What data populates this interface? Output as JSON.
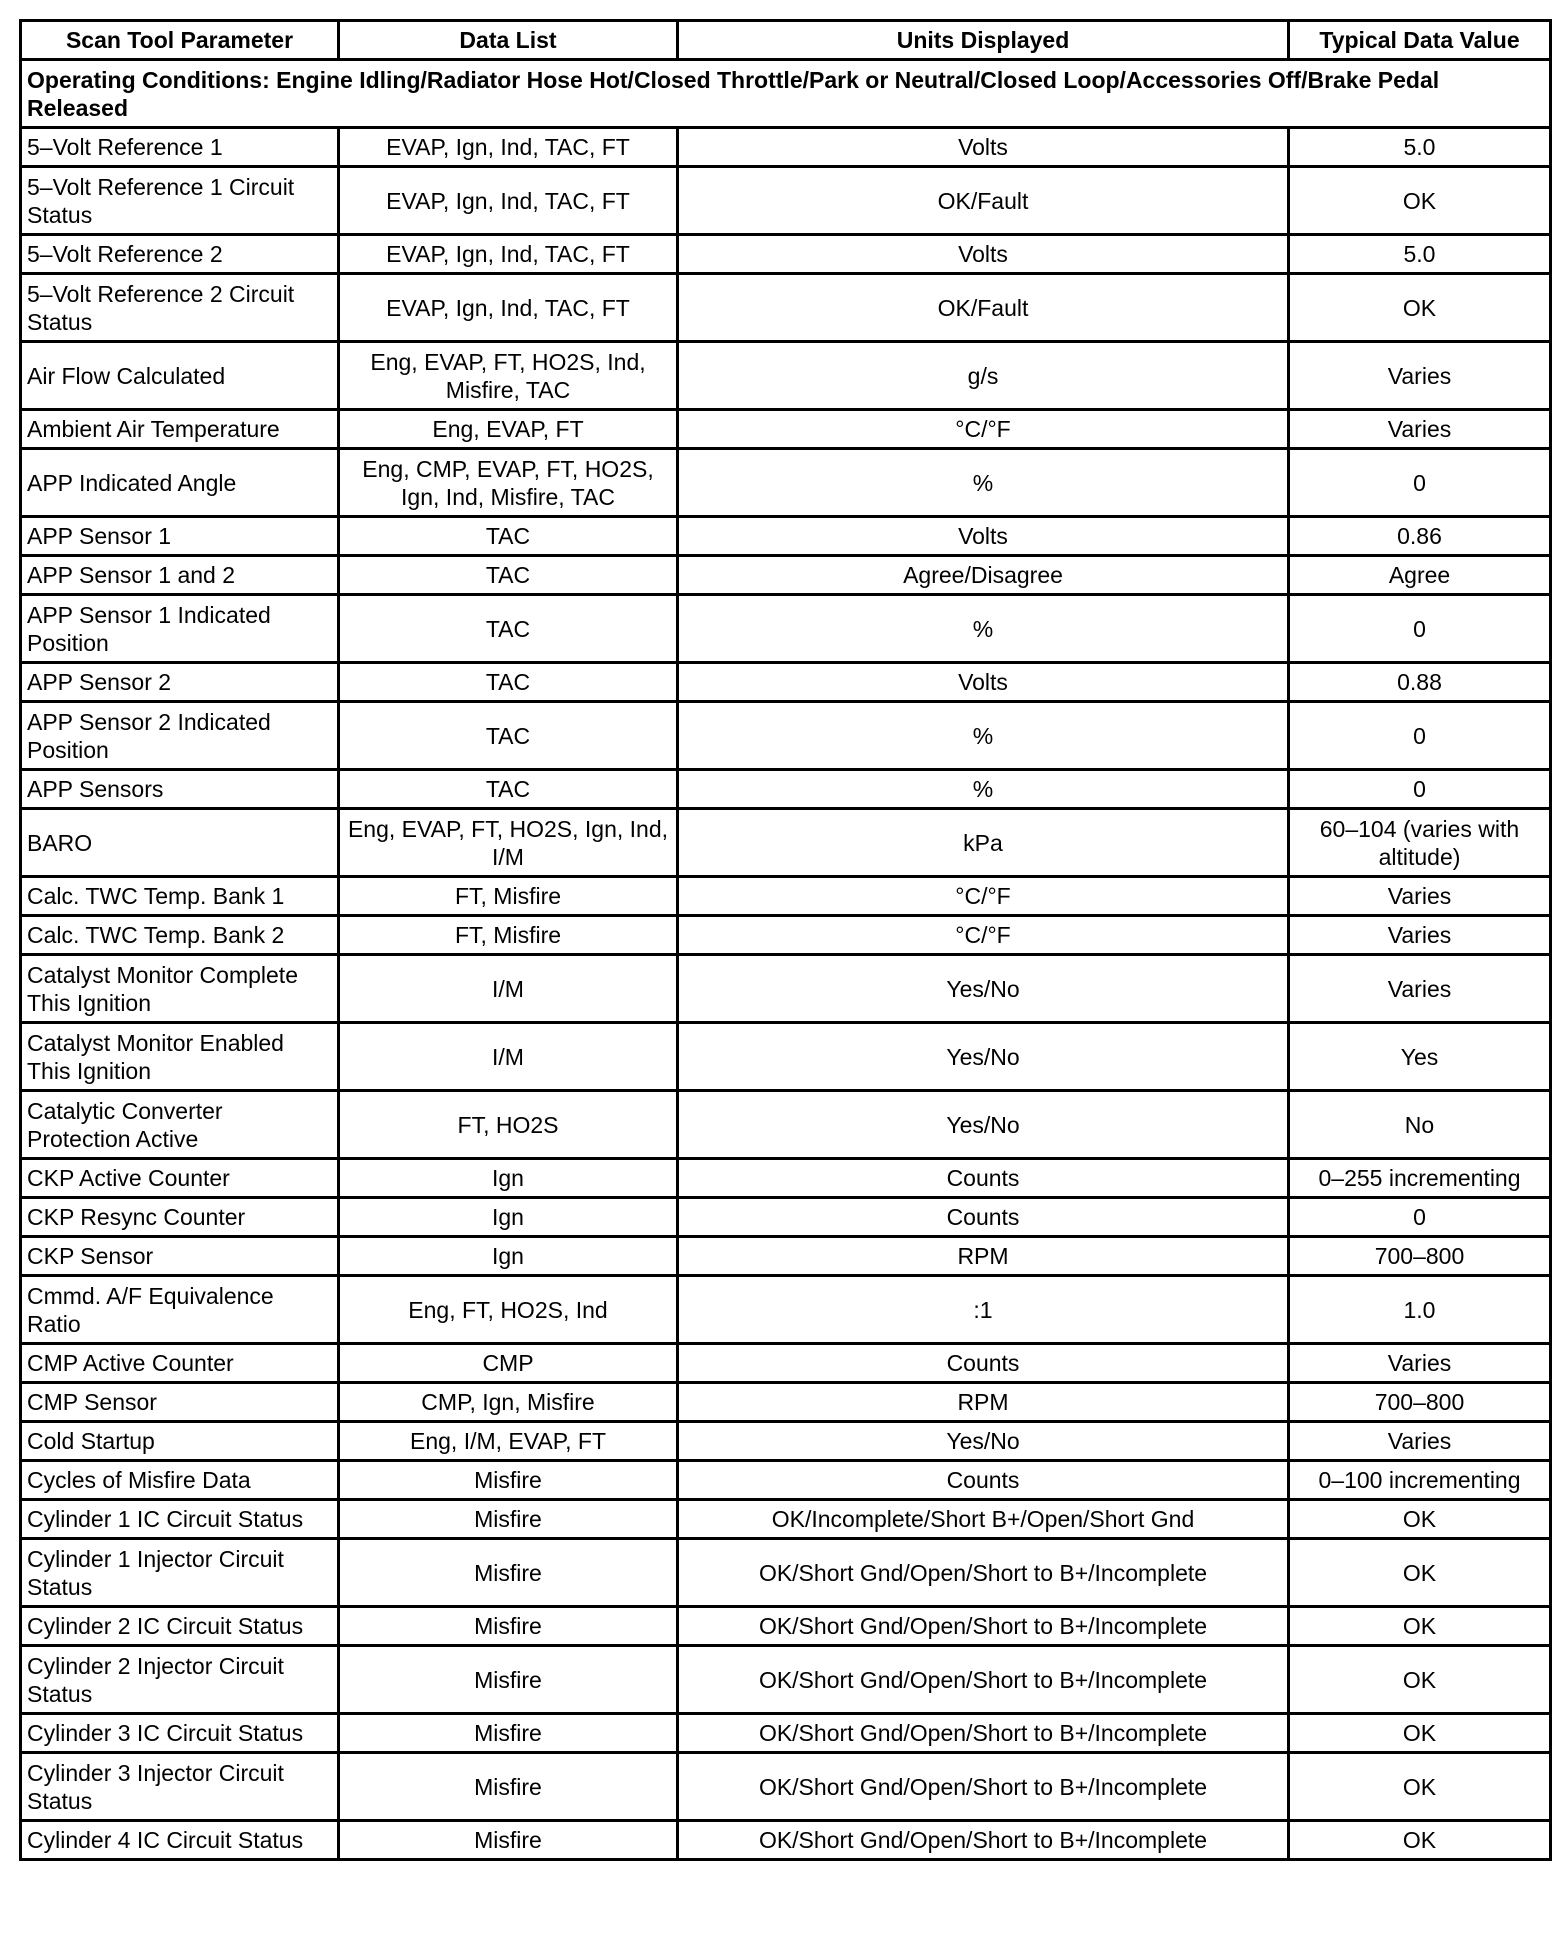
{
  "headers": [
    "Scan Tool Parameter",
    "Data List",
    "Units Displayed",
    "Typical Data Value"
  ],
  "operating_conditions": "Operating Conditions: Engine Idling/Radiator Hose Hot/Closed Throttle/Park or Neutral/Closed Loop/Accessories Off/Brake Pedal Released",
  "rows": [
    {
      "param": "5–Volt Reference 1",
      "list": "EVAP, Ign, Ind, TAC, FT",
      "units": "Volts",
      "value": "5.0",
      "h": "s"
    },
    {
      "param": "5–Volt Reference 1 Circuit Status",
      "list": "EVAP, Ign, Ind, TAC, FT",
      "units": "OK/Fault",
      "value": "OK",
      "h": "d"
    },
    {
      "param": "5–Volt Reference 2",
      "list": "EVAP, Ign, Ind, TAC, FT",
      "units": "Volts",
      "value": "5.0",
      "h": "s"
    },
    {
      "param": "5–Volt Reference 2 Circuit Status",
      "list": "EVAP, Ign, Ind, TAC, FT",
      "units": "OK/Fault",
      "value": "OK",
      "h": "d"
    },
    {
      "param": "Air Flow Calculated",
      "list": "Eng, EVAP, FT, HO2S, Ind, Misfire, TAC",
      "units": "g/s",
      "value": "Varies",
      "h": "d"
    },
    {
      "param": "Ambient Air Temperature",
      "list": "Eng, EVAP, FT",
      "units": "°C/°F",
      "value": "Varies",
      "h": "s"
    },
    {
      "param": "APP Indicated Angle",
      "list": "Eng, CMP, EVAP, FT, HO2S, Ign, Ind, Misfire, TAC",
      "units": "%",
      "value": "0",
      "h": "d"
    },
    {
      "param": "APP Sensor 1",
      "list": "TAC",
      "units": "Volts",
      "value": "0.86",
      "h": "s"
    },
    {
      "param": "APP Sensor 1 and 2",
      "list": "TAC",
      "units": "Agree/Disagree",
      "value": "Agree",
      "h": "s"
    },
    {
      "param": "APP Sensor 1 Indicated Position",
      "list": "TAC",
      "units": "%",
      "value": "0",
      "h": "d"
    },
    {
      "param": "APP Sensor 2",
      "list": "TAC",
      "units": "Volts",
      "value": "0.88",
      "h": "s"
    },
    {
      "param": "APP Sensor 2 Indicated Position",
      "list": "TAC",
      "units": "%",
      "value": "0",
      "h": "d"
    },
    {
      "param": "APP Sensors",
      "list": "TAC",
      "units": "%",
      "value": "0",
      "h": "s"
    },
    {
      "param": "BARO",
      "list": "Eng, EVAP, FT, HO2S, Ign, Ind, I/M",
      "units": "kPa",
      "value": "60–104 (varies with altitude)",
      "h": "d"
    },
    {
      "param": "Calc. TWC Temp. Bank 1",
      "list": "FT, Misfire",
      "units": "°C/°F",
      "value": "Varies",
      "h": "s"
    },
    {
      "param": "Calc. TWC Temp. Bank 2",
      "list": "FT, Misfire",
      "units": "°C/°F",
      "value": "Varies",
      "h": "s"
    },
    {
      "param": "Catalyst Monitor Complete This Ignition",
      "list": "I/M",
      "units": "Yes/No",
      "value": "Varies",
      "h": "d"
    },
    {
      "param": "Catalyst Monitor Enabled This Ignition",
      "list": "I/M",
      "units": "Yes/No",
      "value": "Yes",
      "h": "d"
    },
    {
      "param": "Catalytic Converter Protection Active",
      "list": "FT, HO2S",
      "units": "Yes/No",
      "value": "No",
      "h": "d"
    },
    {
      "param": "CKP Active Counter",
      "list": "Ign",
      "units": "Counts",
      "value": "0–255 incrementing",
      "h": "s"
    },
    {
      "param": "CKP Resync Counter",
      "list": "Ign",
      "units": "Counts",
      "value": "0",
      "h": "s"
    },
    {
      "param": "CKP Sensor",
      "list": "Ign",
      "units": "RPM",
      "value": "700–800",
      "h": "s"
    },
    {
      "param": "Cmmd. A/F Equivalence Ratio",
      "list": "Eng, FT, HO2S, Ind",
      "units": ":1",
      "value": "1.0",
      "h": "d"
    },
    {
      "param": "CMP Active Counter",
      "list": "CMP",
      "units": "Counts",
      "value": "Varies",
      "h": "s"
    },
    {
      "param": "CMP Sensor",
      "list": "CMP, Ign, Misfire",
      "units": "RPM",
      "value": "700–800",
      "h": "s"
    },
    {
      "param": "Cold Startup",
      "list": "Eng, I/M, EVAP, FT",
      "units": "Yes/No",
      "value": "Varies",
      "h": "s"
    },
    {
      "param": "Cycles of Misfire Data",
      "list": "Misfire",
      "units": "Counts",
      "value": "0–100 incrementing",
      "h": "s"
    },
    {
      "param": "Cylinder 1 IC Circuit Status",
      "list": "Misfire",
      "units": "OK/Incomplete/Short B+/Open/Short Gnd",
      "value": "OK",
      "h": "s"
    },
    {
      "param": "Cylinder 1 Injector Circuit Status",
      "list": "Misfire",
      "units": "OK/Short Gnd/Open/Short to B+/Incomplete",
      "value": "OK",
      "h": "d"
    },
    {
      "param": "Cylinder 2 IC Circuit Status",
      "list": "Misfire",
      "units": "OK/Short Gnd/Open/Short to B+/Incomplete",
      "value": "OK",
      "h": "s"
    },
    {
      "param": "Cylinder 2 Injector Circuit Status",
      "list": "Misfire",
      "units": "OK/Short Gnd/Open/Short to B+/Incomplete",
      "value": "OK",
      "h": "d"
    },
    {
      "param": "Cylinder 3 IC Circuit Status",
      "list": "Misfire",
      "units": "OK/Short Gnd/Open/Short to B+/Incomplete",
      "value": "OK",
      "h": "s"
    },
    {
      "param": "Cylinder 3 Injector Circuit Status",
      "list": "Misfire",
      "units": "OK/Short Gnd/Open/Short to B+/Incomplete",
      "value": "OK",
      "h": "d"
    },
    {
      "param": "Cylinder 4 IC Circuit Status",
      "list": "Misfire",
      "units": "OK/Short Gnd/Open/Short to B+/Incomplete",
      "value": "OK",
      "h": "s"
    }
  ]
}
